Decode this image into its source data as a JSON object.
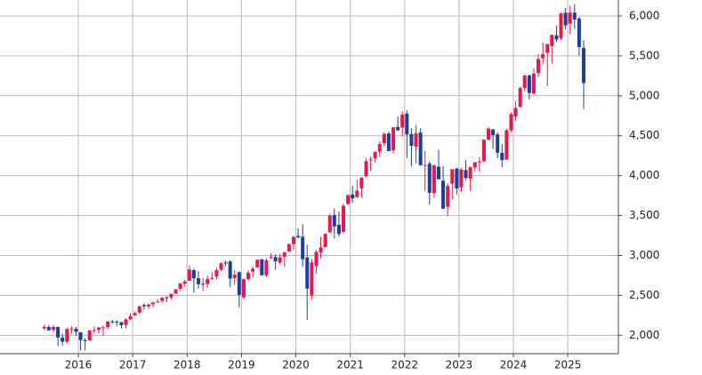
{
  "chart_data": {
    "type": "candlestick",
    "x": [
      2015.375,
      2015.458,
      2015.542,
      2015.625,
      2015.708,
      2015.792,
      2015.875,
      2015.958,
      2016.042,
      2016.125,
      2016.208,
      2016.292,
      2016.375,
      2016.458,
      2016.542,
      2016.625,
      2016.708,
      2016.792,
      2016.875,
      2016.958,
      2017.042,
      2017.125,
      2017.208,
      2017.292,
      2017.375,
      2017.458,
      2017.542,
      2017.625,
      2017.708,
      2017.792,
      2017.875,
      2017.958,
      2018.042,
      2018.125,
      2018.208,
      2018.292,
      2018.375,
      2018.458,
      2018.542,
      2018.625,
      2018.708,
      2018.792,
      2018.875,
      2018.958,
      2019.042,
      2019.125,
      2019.208,
      2019.292,
      2019.375,
      2019.458,
      2019.542,
      2019.625,
      2019.708,
      2019.792,
      2019.875,
      2019.958,
      2020.042,
      2020.125,
      2020.208,
      2020.292,
      2020.375,
      2020.458,
      2020.542,
      2020.625,
      2020.708,
      2020.792,
      2020.875,
      2020.958,
      2021.042,
      2021.125,
      2021.208,
      2021.292,
      2021.375,
      2021.458,
      2021.542,
      2021.625,
      2021.708,
      2021.792,
      2021.875,
      2021.958,
      2022.042,
      2022.125,
      2022.208,
      2022.292,
      2022.375,
      2022.458,
      2022.542,
      2022.625,
      2022.708,
      2022.792,
      2022.875,
      2022.958,
      2023.042,
      2023.125,
      2023.208,
      2023.292,
      2023.375,
      2023.458,
      2023.542,
      2023.625,
      2023.708,
      2023.792,
      2023.875,
      2023.958,
      2024.042,
      2024.125,
      2024.208,
      2024.292,
      2024.375,
      2024.458,
      2024.542,
      2024.625,
      2024.708,
      2024.792,
      2024.875,
      2024.958,
      2025.042,
      2025.125,
      2025.208,
      2025.292
    ],
    "open": [
      2086,
      2105,
      2067,
      2104,
      1970,
      1919,
      2080,
      2082,
      2039,
      1937,
      1937,
      2057,
      2067,
      2094,
      2101,
      2173,
      2171,
      2164,
      2128,
      2201,
      2251,
      2285,
      2380,
      2362,
      2388,
      2415,
      2431,
      2477,
      2474,
      2521,
      2583,
      2645,
      2683,
      2817,
      2715,
      2633,
      2643,
      2718,
      2736,
      2821,
      2897,
      2926,
      2717,
      2790,
      2477,
      2703,
      2798,
      2849,
      2953,
      2751,
      2971,
      2980,
      2910,
      2983,
      3050,
      3143,
      3244,
      3235,
      2974,
      2499,
      2869,
      3038,
      3105,
      3289,
      3507,
      3385,
      3296,
      3645,
      3764,
      3731,
      3842,
      3992,
      4191,
      4217,
      4300,
      4406,
      4528,
      4317,
      4610,
      4602,
      4778,
      4519,
      4363,
      4540,
      4130,
      4149,
      3781,
      4112,
      3936,
      3610,
      3901,
      4087,
      3853,
      4070,
      3963,
      4102,
      4166,
      4181,
      4451,
      4579,
      4517,
      4285,
      4201,
      4568,
      4743,
      4861,
      5098,
      5257,
      5029,
      5284,
      5471,
      5537,
      5623,
      5758,
      5723,
      6040,
      5903,
      6041,
      5968,
      5597
    ],
    "high": [
      2135,
      2129,
      2133,
      2113,
      2021,
      2094,
      2116,
      2105,
      2039,
      1963,
      2072,
      2112,
      2103,
      2121,
      2178,
      2194,
      2188,
      2169,
      2214,
      2278,
      2301,
      2371,
      2401,
      2399,
      2418,
      2454,
      2484,
      2491,
      2519,
      2582,
      2657,
      2695,
      2873,
      2836,
      2802,
      2718,
      2743,
      2791,
      2849,
      2917,
      2941,
      2940,
      2816,
      2800,
      2708,
      2814,
      2861,
      2949,
      2954,
      2965,
      3028,
      3014,
      3022,
      3050,
      3154,
      3248,
      3338,
      3393,
      3136,
      2954,
      3068,
      3233,
      3280,
      3515,
      3588,
      3550,
      3646,
      3760,
      3870,
      3950,
      3983,
      4218,
      4238,
      4302,
      4429,
      4546,
      4546,
      4608,
      4743,
      4808,
      4819,
      4595,
      4637,
      4593,
      4307,
      4178,
      4140,
      4325,
      4120,
      3905,
      4080,
      4101,
      4095,
      4195,
      4111,
      4170,
      4232,
      4458,
      4608,
      4584,
      4542,
      4394,
      4588,
      4794,
      4932,
      5111,
      5265,
      5264,
      5342,
      5524,
      5670,
      5652,
      5768,
      5879,
      6044,
      6100,
      6129,
      6147,
      5987,
      5700
    ],
    "low": [
      2067,
      2056,
      2044,
      1867,
      1872,
      1893,
      2020,
      1993,
      1812,
      1810,
      1931,
      2033,
      2026,
      1992,
      2075,
      2147,
      2120,
      2084,
      2084,
      2188,
      2245,
      2271,
      2322,
      2329,
      2352,
      2405,
      2407,
      2417,
      2446,
      2520,
      2557,
      2605,
      2683,
      2533,
      2585,
      2553,
      2595,
      2692,
      2699,
      2803,
      2864,
      2603,
      2631,
      2346,
      2444,
      2681,
      2722,
      2848,
      2751,
      2729,
      2959,
      2822,
      2891,
      2856,
      3050,
      3070,
      3214,
      2855,
      2192,
      2447,
      2767,
      2966,
      3101,
      3284,
      3210,
      3234,
      3280,
      3633,
      3662,
      3725,
      3723,
      3978,
      4057,
      4165,
      4233,
      4367,
      4306,
      4279,
      4560,
      4496,
      4223,
      4115,
      4158,
      4123,
      3810,
      3637,
      3722,
      3954,
      3584,
      3491,
      3699,
      3765,
      3795,
      3943,
      3808,
      4048,
      4048,
      4167,
      4438,
      4336,
      4217,
      4104,
      4197,
      4546,
      4683,
      4854,
      5057,
      4954,
      5012,
      5234,
      5390,
      5120,
      5402,
      5674,
      5697,
      5832,
      5773,
      5837,
      5505,
      4835
    ],
    "close": [
      2107,
      2063,
      2104,
      1972,
      1920,
      2079,
      2080,
      2044,
      1940,
      1932,
      2060,
      2065,
      2097,
      2099,
      2174,
      2171,
      2168,
      2126,
      2199,
      2239,
      2279,
      2364,
      2363,
      2384,
      2412,
      2423,
      2470,
      2472,
      2519,
      2575,
      2648,
      2674,
      2824,
      2714,
      2641,
      2648,
      2705,
      2718,
      2816,
      2902,
      2914,
      2711,
      2760,
      2507,
      2704,
      2784,
      2834,
      2946,
      2752,
      2942,
      2980,
      2926,
      2977,
      3038,
      3141,
      3231,
      3226,
      2954,
      2585,
      2912,
      3044,
      3100,
      3271,
      3500,
      3363,
      3270,
      3622,
      3756,
      3714,
      3811,
      3973,
      4181,
      4204,
      4298,
      4395,
      4523,
      4308,
      4605,
      4567,
      4766,
      4516,
      4374,
      4530,
      4132,
      4132,
      3785,
      4130,
      3955,
      3586,
      3872,
      4080,
      3840,
      4077,
      3970,
      4109,
      4169,
      4180,
      4450,
      4589,
      4508,
      4288,
      4194,
      4568,
      4770,
      4846,
      5096,
      5254,
      5036,
      5278,
      5460,
      5522,
      5648,
      5762,
      5705,
      6032,
      5882,
      6041,
      5955,
      5612,
      5160
    ],
    "up_color": "#e8194a",
    "down_color": "#1c3f9e",
    "xlim": [
      2014.56,
      2025.93
    ],
    "xticks": [
      2016,
      2017,
      2018,
      2019,
      2020,
      2021,
      2022,
      2023,
      2024,
      2025
    ],
    "ylim": [
      1770,
      6200
    ],
    "yticks": [
      {
        "value": 2000,
        "label": "2,000"
      },
      {
        "value": 2500,
        "label": "2,500"
      },
      {
        "value": 3000,
        "label": "3,000"
      },
      {
        "value": 3500,
        "label": "3,500"
      },
      {
        "value": 4000,
        "label": "4,000"
      },
      {
        "value": 4500,
        "label": "4,500"
      },
      {
        "value": 5000,
        "label": "5,000"
      },
      {
        "value": 5500,
        "label": "5,500"
      },
      {
        "value": 6000,
        "label": "6,000"
      }
    ],
    "grid": true
  }
}
